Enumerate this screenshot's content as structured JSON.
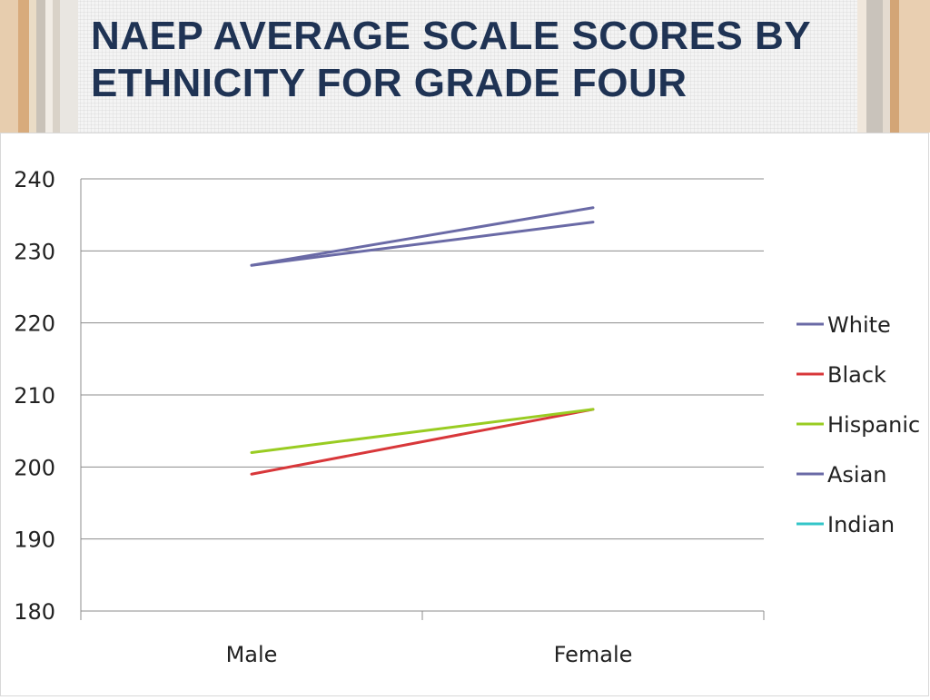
{
  "slide": {
    "title": "NAEP AVERAGE SCALE SCORES BY ETHNICITY FOR GRADE FOUR"
  },
  "chart_data": {
    "type": "line",
    "title": "",
    "xlabel": "",
    "ylabel": "",
    "categories": [
      "Male",
      "Female"
    ],
    "ylim": [
      180,
      240
    ],
    "yticks": [
      180,
      190,
      200,
      210,
      220,
      230,
      240
    ],
    "grid": true,
    "legend": "right",
    "series": [
      {
        "name": "White",
        "values": [
          228,
          234
        ],
        "color": "#6a6aa6"
      },
      {
        "name": "Black",
        "values": [
          199,
          208
        ],
        "color": "#d8373a"
      },
      {
        "name": "Hispanic",
        "values": [
          202,
          208
        ],
        "color": "#99cc22"
      },
      {
        "name": "Asian",
        "values": [
          228,
          236
        ],
        "color": "#6a6aa6"
      },
      {
        "name": "Indian",
        "values": [
          null,
          null
        ],
        "color": "#33c5c8"
      }
    ]
  }
}
